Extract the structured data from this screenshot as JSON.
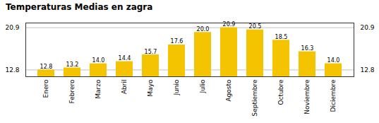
{
  "chart_data": {
    "type": "bar",
    "title": "Temperaturas Medias en zagra",
    "categories": [
      "Enero",
      "Febrero",
      "Marzo",
      "Abril",
      "Mayo",
      "Junio",
      "Julio",
      "Agosto",
      "Septiembre",
      "Octubre",
      "Noviembre",
      "Diciembre"
    ],
    "values": [
      12.8,
      13.2,
      14.0,
      14.4,
      15.7,
      17.6,
      20.0,
      20.9,
      20.5,
      18.5,
      16.3,
      14.0
    ],
    "value_labels": [
      "12.8",
      "13.2",
      "14.0",
      "14.4",
      "15.7",
      "17.6",
      "20.0",
      "20.9",
      "20.5",
      "18.5",
      "16.3",
      "14.0"
    ],
    "color": "#F5C400",
    "ylim": [
      11.5,
      21.8
    ],
    "yticks": [
      12.8,
      20.9
    ],
    "grid": true,
    "data_labels": true
  }
}
